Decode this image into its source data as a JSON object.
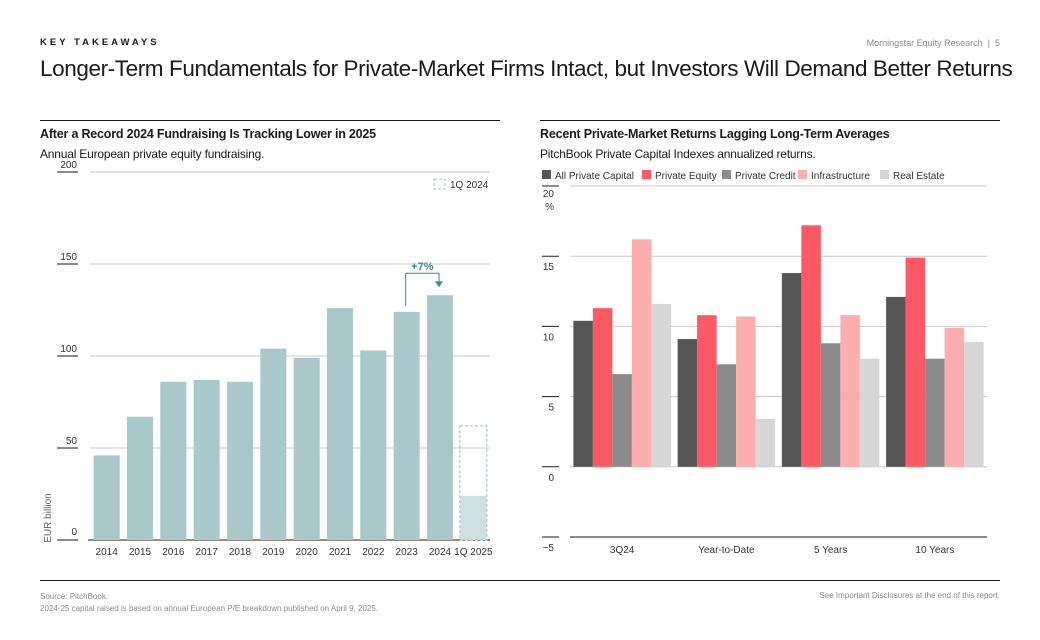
{
  "header": {
    "kicker": "KEY TAKEAWAYS",
    "source_name": "Morningstar Equity Research",
    "separator": "|",
    "page_number": "5",
    "title": "Longer-Term Fundamentals for Private-Market Firms Intact, but Investors Will Demand Better Returns"
  },
  "footer": {
    "source": "Source: PitchBook.",
    "note": "2024-25 capital raised is based on annual European P/E breakdown published on April 9, 2025.",
    "disclosure": "See Important Disclosures at the end of this report."
  },
  "colors": {
    "teal_bar": "#a9c8c9",
    "teal_arrow": "#3e8a88",
    "all_private_capital": "#565656",
    "private_equity": "#fb5a64",
    "private_credit": "#8b8b8b",
    "infrastructure": "#fcadae",
    "real_estate": "#d6d6d6"
  },
  "chart_data": [
    {
      "type": "bar",
      "title": "After a Record 2024 Fundraising Is Tracking Lower in 2025",
      "subtitle": "Annual European private equity fundraising.",
      "ylabel": "EUR billion",
      "ylim": [
        0,
        200
      ],
      "yticks": [
        0,
        50,
        100,
        150,
        200
      ],
      "categories": [
        "2014",
        "2015",
        "2016",
        "2017",
        "2018",
        "2019",
        "2020",
        "2021",
        "2022",
        "2023",
        "2024",
        "1Q 2025"
      ],
      "values": [
        46,
        67,
        86,
        87,
        86,
        104,
        99,
        126,
        103,
        124,
        133,
        24
      ],
      "comparison": {
        "label": "1Q 2024",
        "value": 62
      },
      "annotation": {
        "text": "+7%",
        "from": "2023",
        "to": "2024"
      },
      "grid": true
    },
    {
      "type": "bar",
      "title": "Recent Private-Market Returns Lagging Long-Term Averages",
      "subtitle": "PitchBook Private Capital Indexes annualized returns.",
      "yunit": "%",
      "ylim": [
        -5,
        20
      ],
      "yticks": [
        -5,
        0,
        5,
        10,
        15,
        20
      ],
      "ytick_labels": [
        "−5",
        "0",
        "5",
        "10",
        "15",
        "20"
      ],
      "categories": [
        "3Q24",
        "Year-to-Date",
        "5 Years",
        "10 Years"
      ],
      "legend_position": "top",
      "series": [
        {
          "name": "All Private Capital",
          "values": [
            10.4,
            9.1,
            13.8,
            12.1
          ]
        },
        {
          "name": "Private Equity",
          "values": [
            11.3,
            10.8,
            17.2,
            14.9
          ]
        },
        {
          "name": "Private Credit",
          "values": [
            6.6,
            7.3,
            8.8,
            7.7
          ]
        },
        {
          "name": "Infrastructure",
          "values": [
            16.2,
            10.7,
            10.8,
            9.9
          ]
        },
        {
          "name": "Real Estate",
          "values": [
            11.6,
            3.4,
            7.7,
            8.9
          ]
        }
      ],
      "grid": true
    }
  ]
}
